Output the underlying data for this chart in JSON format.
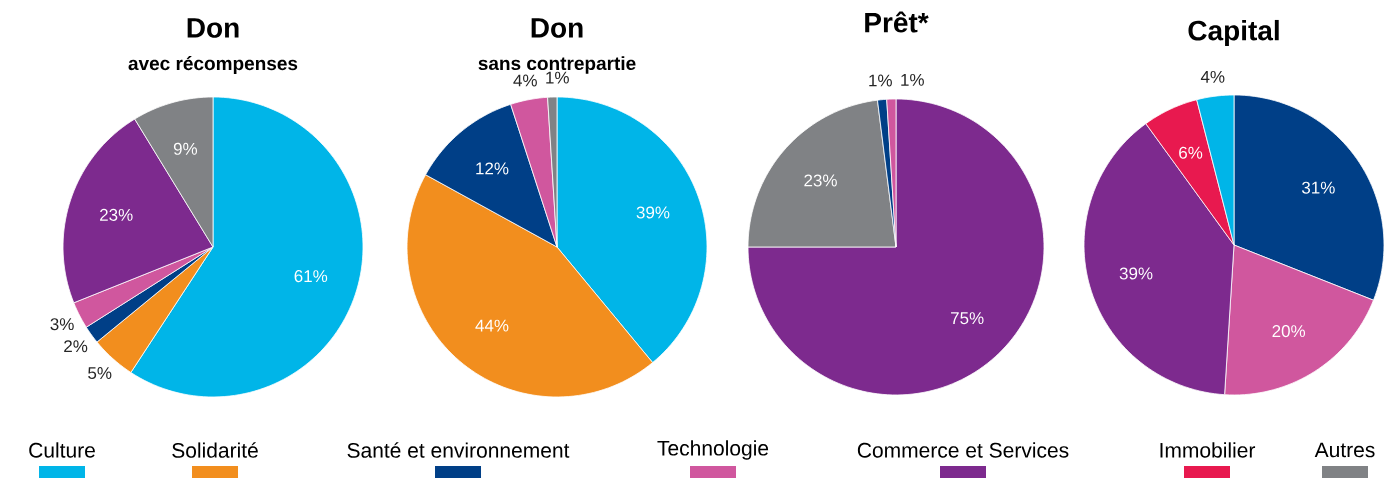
{
  "chart_data": [
    {
      "type": "pie",
      "title": "Don",
      "subtitle": "avec récompenses",
      "categories": [
        null,
        null,
        null,
        null,
        null,
        null
      ],
      "values": [
        61,
        5,
        2,
        3,
        23,
        9
      ],
      "value_labels": [
        "61%",
        "5%",
        "2%",
        "3%",
        "23%",
        "9%"
      ],
      "colors": [
        "#00b5e8",
        "#f28e1e",
        "#003f87",
        "#d0579e",
        "#7d2a8e",
        "#808285"
      ]
    },
    {
      "type": "pie",
      "title": "Don",
      "subtitle": "sans contrepartie",
      "categories": [
        null,
        null,
        null,
        null,
        null
      ],
      "values": [
        39,
        44,
        12,
        4,
        1
      ],
      "value_labels": [
        "39%",
        "44%",
        "12%",
        "4%",
        "1%"
      ],
      "colors": [
        "#00b5e8",
        "#f28e1e",
        "#003f87",
        "#d0579e",
        "#808285"
      ]
    },
    {
      "type": "pie",
      "title": "Prêt*",
      "categories": [
        null,
        null,
        null,
        null
      ],
      "values": [
        75,
        23,
        1,
        1
      ],
      "value_labels": [
        "75%",
        "23%",
        "1%",
        "1%"
      ],
      "colors": [
        "#7d2a8e",
        "#808285",
        "#003f87",
        "#d0579e"
      ]
    },
    {
      "type": "pie",
      "title": "Capital",
      "categories": [
        null,
        null,
        null,
        null,
        null
      ],
      "values": [
        31,
        20,
        39,
        6,
        4
      ],
      "value_labels": [
        "31%",
        "20%",
        "39%",
        "6%",
        "4%"
      ],
      "colors": [
        "#003f87",
        "#d0579e",
        "#7d2a8e",
        "#e8194f",
        "#00b5e8"
      ]
    },
    {
      "type": "other",
      "categories": [
        "Culture",
        "Solidarité",
        "Santé et environnement",
        "Technologie",
        "Commerce et Services",
        "Immobilier",
        "Autres"
      ],
      "colors": [
        "#00b5e8",
        "#f28e1e",
        "#003f87",
        "#d0579e",
        "#7d2a8e",
        "#e8194f",
        "#808285"
      ]
    }
  ]
}
